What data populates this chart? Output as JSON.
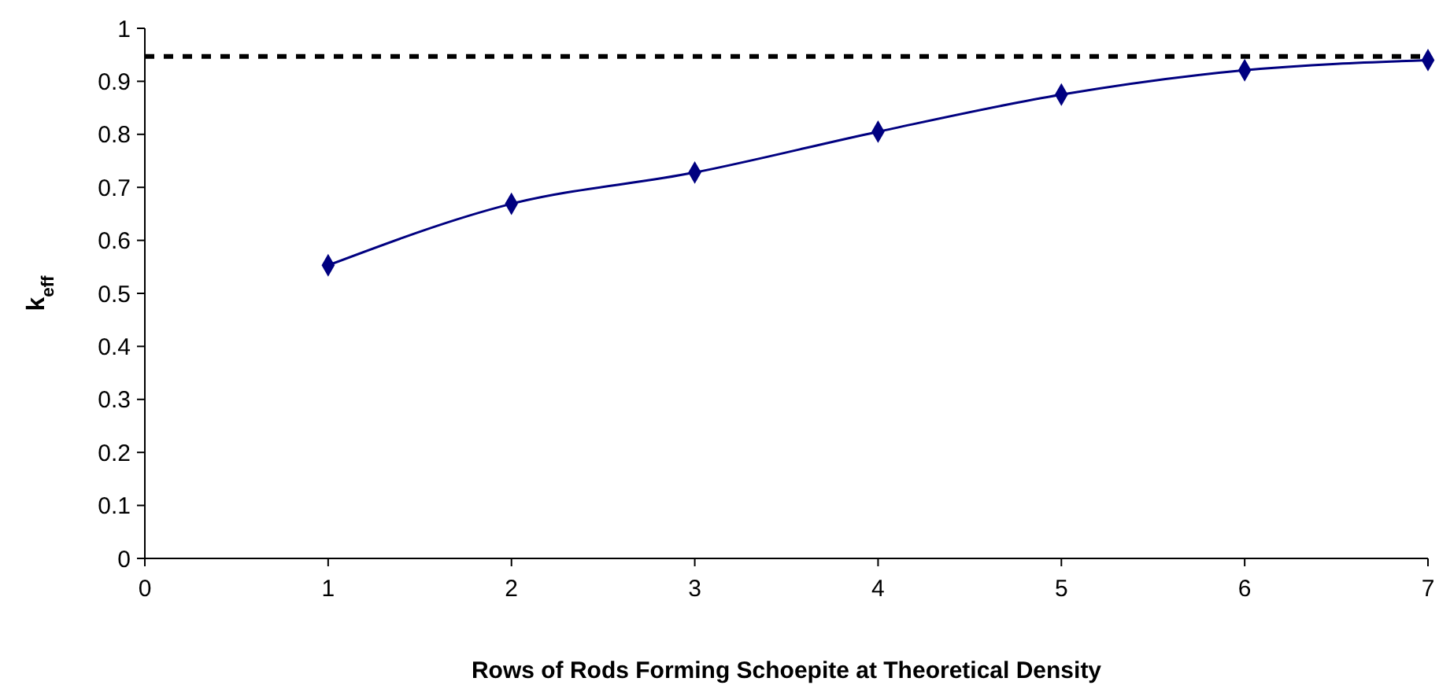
{
  "chart_data": {
    "type": "line",
    "xlabel": "Rows of Rods Forming Schoepite at Theoretical Density",
    "ylabel": "k$_{eff}$",
    "x": [
      1,
      2,
      3,
      4,
      5,
      6,
      7
    ],
    "series": [
      {
        "color": "#000080",
        "values": [
          0.553,
          0.669,
          0.728,
          0.805,
          0.875,
          0.921,
          0.94
        ]
      }
    ],
    "xlim": [
      0,
      7
    ],
    "xticks": [
      0,
      1,
      2,
      3,
      4,
      5,
      6,
      7
    ],
    "ylim": [
      0,
      1
    ],
    "yticks": [
      0,
      0.1,
      0.2,
      0.3,
      0.4,
      0.5,
      0.6,
      0.7,
      0.8,
      0.9,
      1
    ],
    "ref_lines": [
      {
        "axis": "y",
        "value": 0.947,
        "color": "#000000",
        "line_style": "dashed"
      }
    ],
    "marker": "diamond",
    "line_style": "solid"
  }
}
